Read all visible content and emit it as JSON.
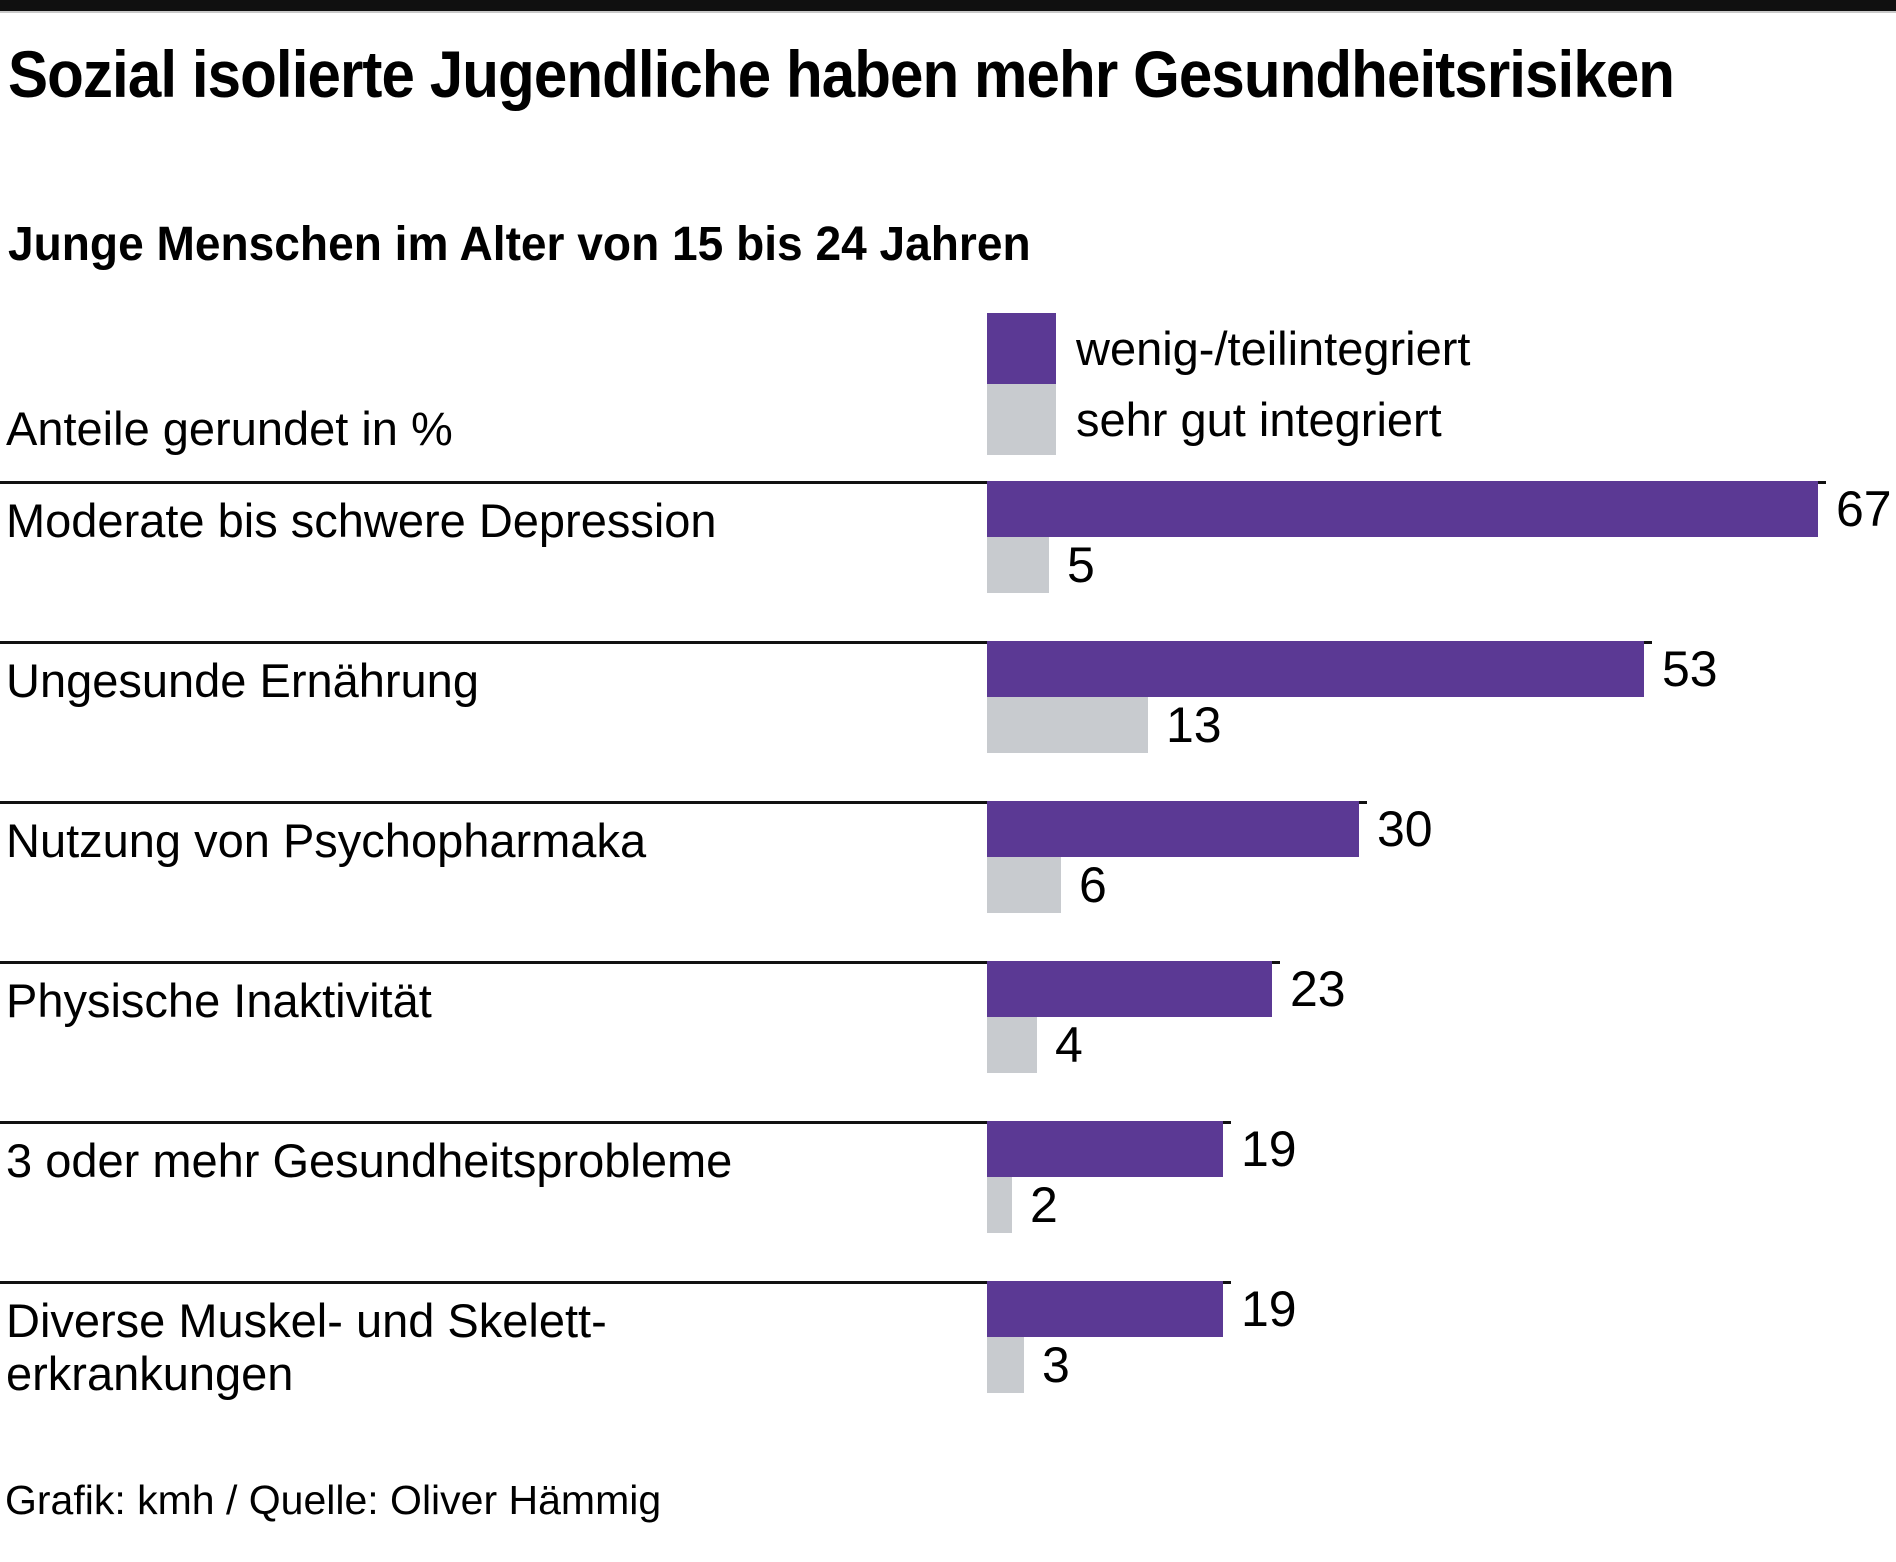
{
  "header": {
    "title": "Sozial isolierte Jugendliche haben mehr Gesundheitsrisiken",
    "subtitle": "Junge Menschen im Alter von 15 bis 24 Jahren"
  },
  "axis_note": "Anteile gerundet in %",
  "legend": {
    "series1_label": "wenig-/teilintegriert",
    "series2_label": "sehr gut integriert"
  },
  "footer": {
    "credit": "Grafik: kmh / Quelle: Oliver Hämmig"
  },
  "colors": {
    "purple": "#5b3994",
    "gray": "#c8cbcf",
    "rule": "#111111",
    "masthead": "#101010"
  },
  "chart_data": {
    "type": "bar",
    "orientation": "horizontal",
    "title": "Sozial isolierte Jugendliche haben mehr Gesundheitsrisiken",
    "subtitle": "Junge Menschen im Alter von 15 bis 24 Jahren",
    "unit_note": "Anteile gerundet in %",
    "value_labels": true,
    "grid": false,
    "legend_position": "top-right",
    "xlim": [
      0,
      70
    ],
    "categories": [
      "Moderate bis schwere Depression",
      "Ungesunde Ernährung",
      "Nutzung von Psychopharmaka",
      "Physische Inaktivität",
      "3 oder mehr Gesundheitsprobleme",
      "Diverse Muskel- und Skelett-\nerkrankungen"
    ],
    "series": [
      {
        "name": "wenig-/teilintegriert",
        "color": "#5b3994",
        "values": [
          67,
          53,
          30,
          23,
          19,
          19
        ]
      },
      {
        "name": "sehr gut integriert",
        "color": "#c8cbcf",
        "values": [
          5,
          13,
          6,
          4,
          2,
          3
        ]
      }
    ]
  }
}
